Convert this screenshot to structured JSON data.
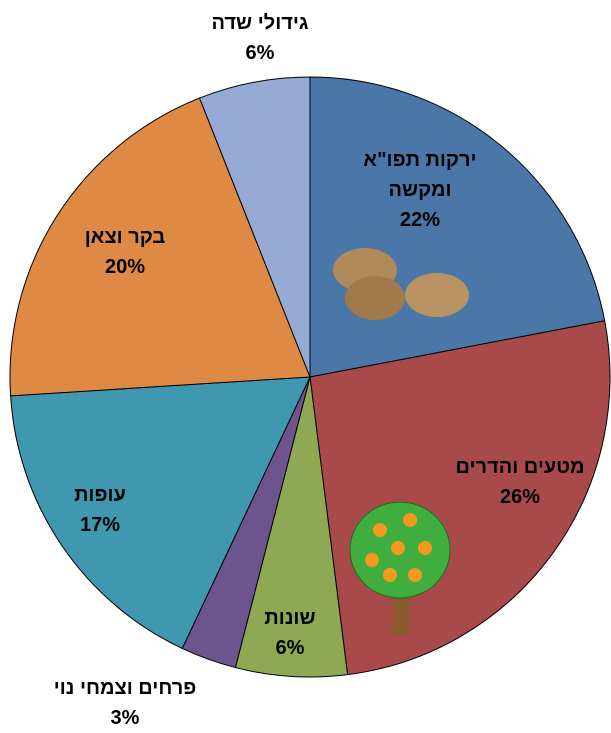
{
  "chart_data": {
    "type": "pie",
    "categories": [
      "ירקות תפו\"א ומקשה",
      "מטעים והדרים",
      "שונות",
      "פרחים וצמחי נוי",
      "עופות",
      "בקר וצאן",
      "גידולי שדה"
    ],
    "values": [
      22,
      26,
      6,
      3,
      17,
      20,
      6
    ],
    "value_labels": [
      "22%",
      "26%",
      "6%",
      "3%",
      "17%",
      "20%",
      "6%"
    ],
    "colors": [
      "#4a76a8",
      "#a84a4a",
      "#8ea854",
      "#6e548e",
      "#3f98b0",
      "#df8a44",
      "#95aad4"
    ]
  }
}
